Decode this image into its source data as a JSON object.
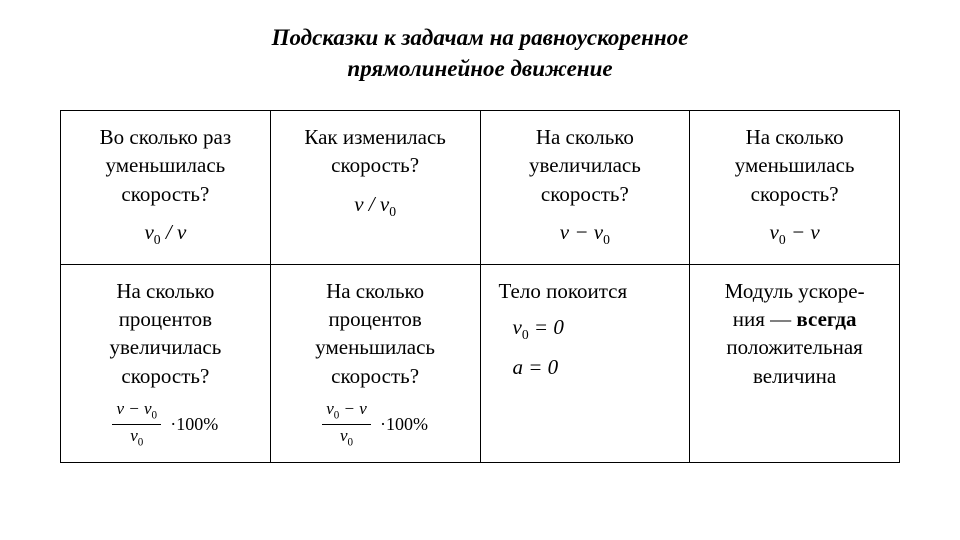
{
  "title_line1": "Подсказки к задачам на равноускоренное",
  "title_line2": "прямолинейное движение",
  "table": {
    "columns": 4,
    "rows": 2,
    "border_color": "#000000",
    "background": "#ffffff",
    "font_family": "Times New Roman",
    "cell_fontsize_pt": 16,
    "cells": {
      "r0c0": {
        "question": "Во сколько раз уменьшилась скорость?",
        "formula_html": "<i>v</i><span class=\"sub\">0</span> / <i>v</i>"
      },
      "r0c1": {
        "question": "Как изменилась скорость?",
        "formula_html": "<i>v</i> / <i>v</i><span class=\"sub\">0</span>"
      },
      "r0c2": {
        "question": "На сколько увеличилась скорость?",
        "formula_html": "<i>v</i> − <i>v</i><span class=\"sub\">0</span>"
      },
      "r0c3": {
        "question": "На сколько уменьшилась скорость?",
        "formula_html": "<i>v</i><span class=\"sub\">0</span> − <i>v</i>"
      },
      "r1c0": {
        "question": "На сколько процентов увеличилась скорость?",
        "frac_num_html": "<i>v</i> − <i>v</i><span class=\"sub\">0</span>",
        "frac_den_html": "<i>v</i><span class=\"sub\">0</span>",
        "pct": "·100%"
      },
      "r1c1": {
        "question": "На сколько процентов уменьшилась скорость?",
        "frac_num_html": "<i>v</i><span class=\"sub\">0</span> − <i>v</i>",
        "frac_den_html": "<i>v</i><span class=\"sub\">0</span>",
        "pct": "·100%"
      },
      "r1c2": {
        "label": "Тело покоится",
        "eq1_html": "<i>v</i><span class=\"sub\">0</span> = 0",
        "eq2_html": "<i>a</i> = 0"
      },
      "r1c3": {
        "line1": "Модуль ускоре-",
        "line2a": "ния — ",
        "line2_bold": "всегда",
        "line3": "положительная",
        "line4": "величина"
      }
    }
  }
}
